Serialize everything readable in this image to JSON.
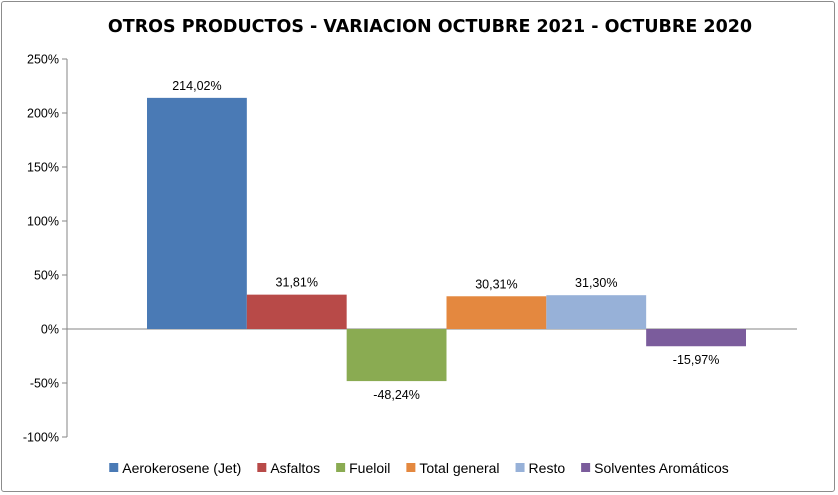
{
  "chart_data": {
    "type": "bar",
    "title": "OTROS PRODUCTOS - VARIACION OCTUBRE 2021 - OCTUBRE 2020",
    "xlabel": "",
    "ylabel": "",
    "ylim": [
      -100,
      250
    ],
    "y_ticks": [
      250,
      200,
      150,
      100,
      50,
      0,
      -50,
      -100
    ],
    "y_tick_labels": [
      "250%",
      "200%",
      "150%",
      "100%",
      "50%",
      "0%",
      "-50%",
      "-100%"
    ],
    "grid": false,
    "legend_position": "bottom",
    "series": [
      {
        "name": "Aerokerosene (Jet)",
        "value": 214.02,
        "label": "214,02%",
        "color": "#4a7ab5"
      },
      {
        "name": "Asfaltos",
        "value": 31.81,
        "label": "31,81%",
        "color": "#b84a48"
      },
      {
        "name": "Fueloil",
        "value": -48.24,
        "label": "-48,24%",
        "color": "#8aab52"
      },
      {
        "name": "Total general",
        "value": 30.31,
        "label": "30,31%",
        "color": "#e4883f"
      },
      {
        "name": "Resto",
        "value": 31.3,
        "label": "31,30%",
        "color": "#97b1d8"
      },
      {
        "name": "Solventes Aromáticos",
        "value": -15.97,
        "label": "-15,97%",
        "color": "#7b5c9c"
      }
    ]
  }
}
